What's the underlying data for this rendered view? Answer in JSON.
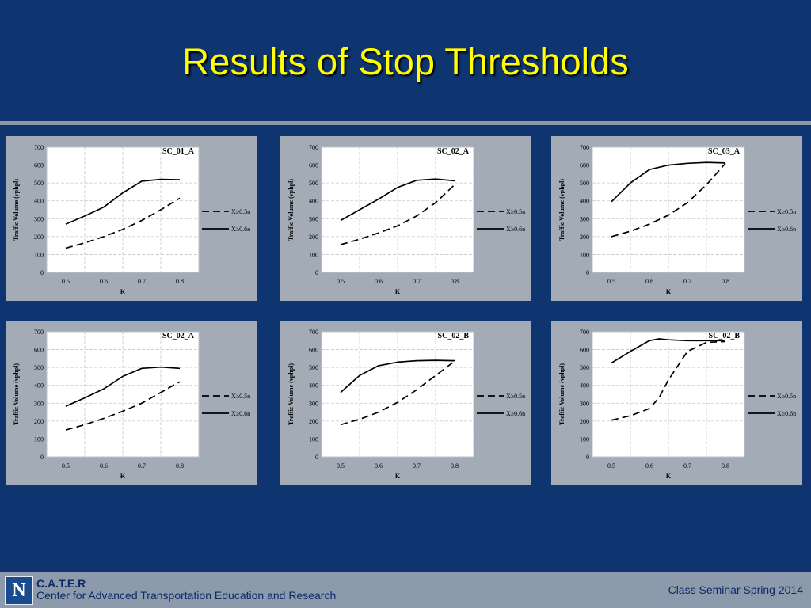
{
  "slide": {
    "title": "Results of Stop Thresholds"
  },
  "footer": {
    "org_abbr": "C.A.T.E.R",
    "org_name": "Center for Advanced Transportation Education and Research",
    "seminar": "Class Seminar Spring 2014",
    "logo_letter": "N"
  },
  "colors": {
    "background": "#0f3570",
    "title": "#ffff00",
    "panel": "#a2abb6",
    "footer": "#8d9aab"
  },
  "chart_data": [
    {
      "type": "line",
      "title": "SC_01_A",
      "xlabel": "K",
      "ylabel": "Traffic Volume (vphpl)",
      "x": [
        0.5,
        0.55,
        0.6,
        0.65,
        0.7,
        0.75,
        0.8
      ],
      "xticks": [
        "0.5",
        "0.6",
        "0.7",
        "0.8"
      ],
      "yticks": [
        "0",
        "100",
        "200",
        "300",
        "400",
        "500",
        "600",
        "700"
      ],
      "xlim": [
        0.45,
        0.85
      ],
      "ylim": [
        0,
        700
      ],
      "grid": true,
      "legend": "right",
      "series": [
        {
          "name": "X≥0.5n",
          "style": "dashed",
          "values": [
            135,
            165,
            200,
            240,
            290,
            350,
            415
          ]
        },
        {
          "name": "X≥0.6n",
          "style": "solid",
          "values": [
            270,
            315,
            365,
            445,
            510,
            520,
            518
          ]
        }
      ]
    },
    {
      "type": "line",
      "title": "SC_02_A",
      "xlabel": "K",
      "ylabel": "Traffic Volume (vphpl)",
      "x": [
        0.5,
        0.55,
        0.6,
        0.65,
        0.7,
        0.75,
        0.8
      ],
      "xticks": [
        "0.5",
        "0.6",
        "0.7",
        "0.8"
      ],
      "yticks": [
        "0",
        "100",
        "200",
        "300",
        "400",
        "500",
        "600",
        "700"
      ],
      "xlim": [
        0.45,
        0.85
      ],
      "ylim": [
        0,
        700
      ],
      "grid": true,
      "legend": "right",
      "series": [
        {
          "name": "X≥0.5n",
          "style": "dashed",
          "values": [
            155,
            185,
            220,
            260,
            315,
            390,
            490
          ]
        },
        {
          "name": "X≥0.6n",
          "style": "solid",
          "values": [
            290,
            350,
            410,
            475,
            515,
            522,
            512
          ]
        }
      ]
    },
    {
      "type": "line",
      "title": "SC_03_A",
      "xlabel": "K",
      "ylabel": "Traffic Volume (vphpl)",
      "x": [
        0.5,
        0.55,
        0.6,
        0.65,
        0.7,
        0.75,
        0.8
      ],
      "xticks": [
        "0.5",
        "0.6",
        "0.7",
        "0.8"
      ],
      "yticks": [
        "0",
        "100",
        "200",
        "300",
        "400",
        "500",
        "600",
        "700"
      ],
      "xlim": [
        0.45,
        0.85
      ],
      "ylim": [
        0,
        700
      ],
      "grid": true,
      "legend": "right",
      "series": [
        {
          "name": "X≥0.5n",
          "style": "dashed",
          "values": [
            200,
            230,
            270,
            320,
            390,
            490,
            610
          ]
        },
        {
          "name": "X≥0.6n",
          "style": "solid",
          "values": [
            395,
            500,
            575,
            600,
            610,
            615,
            612
          ]
        }
      ]
    },
    {
      "type": "line",
      "title": "SC_02_A",
      "xlabel": "K",
      "ylabel": "Traffic Volume (vphpl)",
      "x": [
        0.5,
        0.55,
        0.6,
        0.65,
        0.7,
        0.75,
        0.8
      ],
      "xticks": [
        "0.5",
        "0.6",
        "0.7",
        "0.8"
      ],
      "yticks": [
        "0",
        "100",
        "200",
        "300",
        "400",
        "500",
        "600",
        "700"
      ],
      "xlim": [
        0.45,
        0.85
      ],
      "ylim": [
        0,
        700
      ],
      "grid": true,
      "legend": "right",
      "series": [
        {
          "name": "X≥0.5n",
          "style": "dashed",
          "values": [
            150,
            180,
            215,
            255,
            300,
            360,
            420
          ]
        },
        {
          "name": "X≥0.6n",
          "style": "solid",
          "values": [
            283,
            330,
            380,
            450,
            495,
            502,
            495
          ]
        }
      ]
    },
    {
      "type": "line",
      "title": "SC_02_B",
      "xlabel": "K",
      "ylabel": "Traffic Volume (vphpl)",
      "x": [
        0.5,
        0.55,
        0.6,
        0.65,
        0.7,
        0.75,
        0.8
      ],
      "xticks": [
        "0.5",
        "0.6",
        "0.7",
        "0.8"
      ],
      "yticks": [
        "0",
        "100",
        "200",
        "300",
        "400",
        "500",
        "600",
        "700"
      ],
      "xlim": [
        0.45,
        0.85
      ],
      "ylim": [
        0,
        700
      ],
      "grid": true,
      "legend": "right",
      "series": [
        {
          "name": "X≥0.5n",
          "style": "dashed",
          "values": [
            180,
            210,
            250,
            305,
            375,
            455,
            535
          ]
        },
        {
          "name": "X≥0.6n",
          "style": "solid",
          "values": [
            360,
            455,
            510,
            530,
            538,
            540,
            538
          ]
        }
      ]
    },
    {
      "type": "line",
      "title": "SC_02_B",
      "xlabel": "K",
      "ylabel": "Traffic Volume (vphpl)",
      "x": [
        0.5,
        0.55,
        0.6,
        0.625,
        0.65,
        0.7,
        0.75,
        0.8
      ],
      "xticks": [
        "0.5",
        "0.6",
        "0.7",
        "0.8"
      ],
      "yticks": [
        "0",
        "100",
        "200",
        "300",
        "400",
        "500",
        "600",
        "700"
      ],
      "xlim": [
        0.45,
        0.85
      ],
      "ylim": [
        0,
        700
      ],
      "grid": true,
      "legend": "right",
      "series": [
        {
          "name": "X≥0.5n",
          "style": "dashed",
          "values": [
            205,
            230,
            270,
            330,
            430,
            590,
            640,
            645
          ]
        },
        {
          "name": "X≥0.6n",
          "style": "solid",
          "values": [
            525,
            590,
            650,
            660,
            655,
            650,
            650,
            650
          ]
        }
      ]
    }
  ]
}
